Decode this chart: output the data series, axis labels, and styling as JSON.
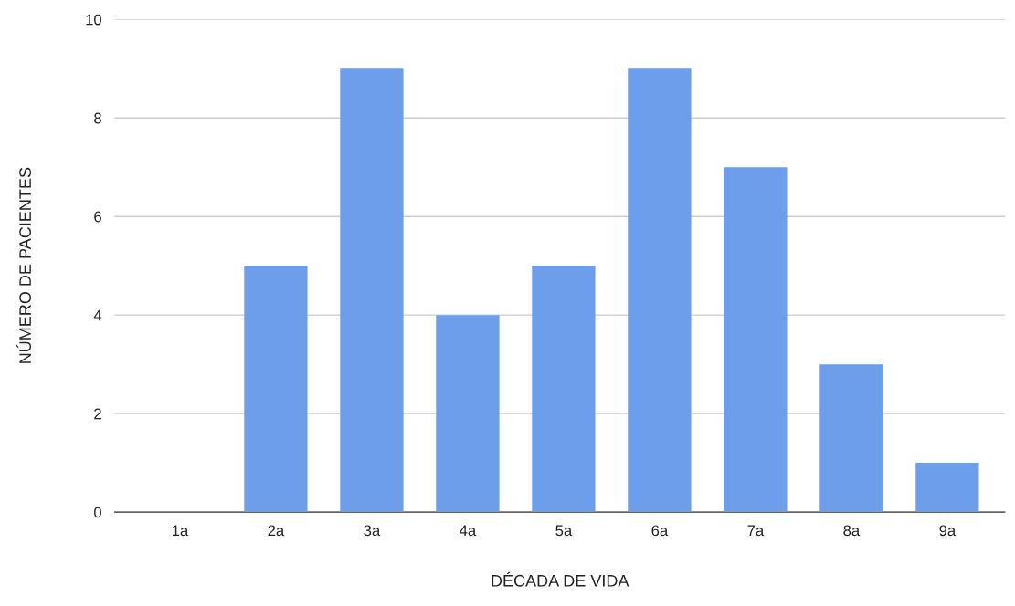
{
  "chart_data": {
    "type": "bar",
    "xlabel": "DÉCADA DE VIDA",
    "ylabel": "NÚMERO DE PACIENTES",
    "categories": [
      "1a",
      "2a",
      "3a",
      "4a",
      "5a",
      "6a",
      "7a",
      "8a",
      "9a"
    ],
    "values": [
      0,
      5,
      9,
      4,
      5,
      9,
      7,
      3,
      1
    ],
    "color": "#6d9eeb",
    "ylim": [
      0,
      10
    ],
    "yticks": [
      0,
      2,
      4,
      6,
      8,
      10
    ],
    "grid": "y",
    "legend": false
  }
}
